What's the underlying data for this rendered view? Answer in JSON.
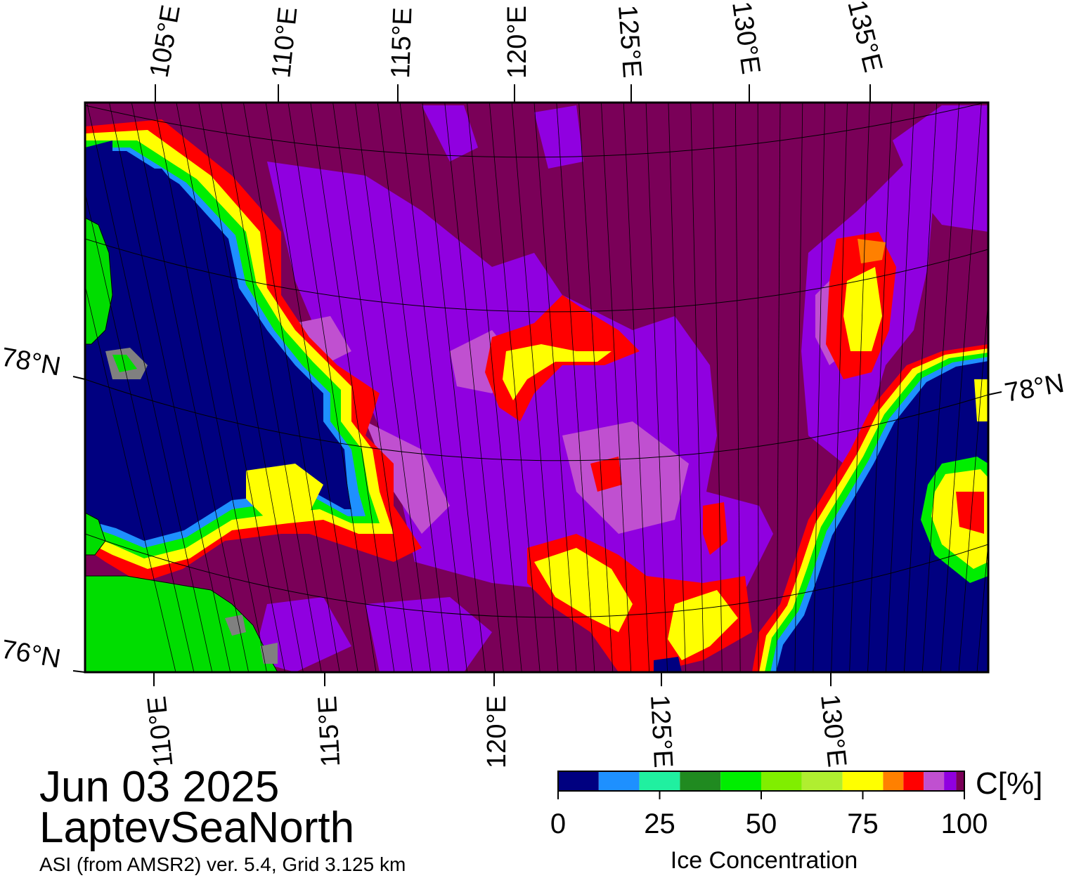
{
  "map": {
    "top_lon_labels": [
      "105°E",
      "110°E",
      "115°E",
      "120°E",
      "125°E",
      "130°E",
      "135°E"
    ],
    "bottom_lon_labels": [
      "110°E",
      "115°E",
      "120°E",
      "125°E",
      "130°E"
    ],
    "lat_labels_left": [
      "78°N",
      "76°N"
    ],
    "lat_labels_right": [
      "78°N"
    ],
    "land_color": "#00dd00",
    "ocean_open_color": "#000080"
  },
  "caption": {
    "date": "Jun 03 2025",
    "region": "LaptevSeaNorth",
    "product": "ASI (from AMSR2) ver. 5.4,  Grid 3.125 km"
  },
  "colorbar": {
    "title": "Ice Concentration",
    "unit": "C[%]",
    "ticks": [
      "0",
      "25",
      "50",
      "75",
      "100"
    ],
    "bins": [
      {
        "range": [
          0,
          10
        ],
        "color": "#000080"
      },
      {
        "range": [
          10,
          20
        ],
        "color": "#1e90ff"
      },
      {
        "range": [
          20,
          30
        ],
        "color": "#20f0a0"
      },
      {
        "range": [
          30,
          40
        ],
        "color": "#208a20"
      },
      {
        "range": [
          40,
          50
        ],
        "color": "#00ee00"
      },
      {
        "range": [
          50,
          60
        ],
        "color": "#80ee00"
      },
      {
        "range": [
          60,
          70
        ],
        "color": "#b0ee30"
      },
      {
        "range": [
          70,
          80
        ],
        "color": "#ffff00"
      },
      {
        "range": [
          80,
          85
        ],
        "color": "#ff8000"
      },
      {
        "range": [
          85,
          90
        ],
        "color": "#ff0000"
      },
      {
        "range": [
          90,
          95
        ],
        "color": "#c050d0"
      },
      {
        "range": [
          95,
          98
        ],
        "color": "#9000e0"
      },
      {
        "range": [
          98,
          100
        ],
        "color": "#7a0058"
      }
    ]
  }
}
